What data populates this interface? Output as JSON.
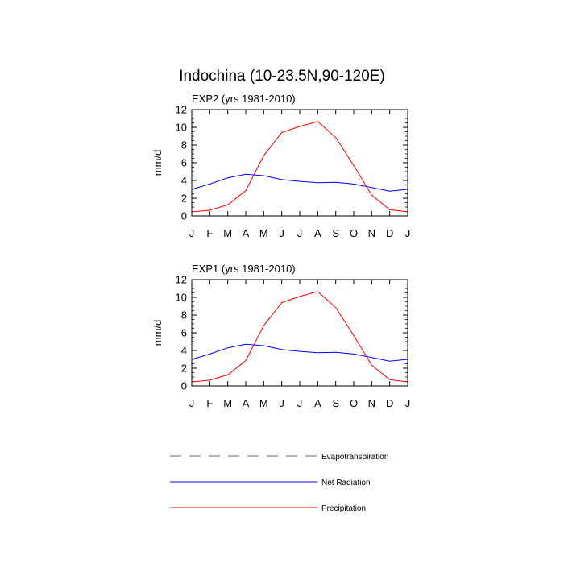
{
  "figure": {
    "title": "Indochina (10-23.5N,90-120E)"
  },
  "chart_data": [
    {
      "type": "line",
      "panel": "top",
      "title": "EXP2 (yrs 1981-2010)",
      "ylabel": "mm/d",
      "xlabel": "",
      "x_ticks": [
        "J",
        "F",
        "M",
        "A",
        "M",
        "J",
        "J",
        "A",
        "S",
        "O",
        "N",
        "D",
        "J"
      ],
      "ylim": [
        0,
        12
      ],
      "y_ticks": [
        0,
        2,
        4,
        6,
        8,
        10,
        12
      ],
      "grid": false,
      "series": [
        {
          "name": "Evapotranspiration",
          "color": "#888888",
          "dash": "dashed",
          "values": []
        },
        {
          "name": "Net Radiation",
          "color": "#0000ff",
          "values": [
            3.0,
            3.6,
            4.3,
            4.7,
            4.55,
            4.1,
            3.9,
            3.75,
            3.8,
            3.6,
            3.2,
            2.8,
            3.0
          ]
        },
        {
          "name": "Precipitation",
          "color": "#ff0000",
          "values": [
            0.45,
            0.65,
            1.25,
            2.85,
            6.8,
            9.4,
            10.1,
            10.65,
            8.85,
            5.7,
            2.35,
            0.7,
            0.45
          ]
        }
      ]
    },
    {
      "type": "line",
      "panel": "bottom",
      "title": "EXP1 (yrs 1981-2010)",
      "ylabel": "mm/d",
      "xlabel": "",
      "x_ticks": [
        "J",
        "F",
        "M",
        "A",
        "M",
        "J",
        "J",
        "A",
        "S",
        "O",
        "N",
        "D",
        "J"
      ],
      "ylim": [
        0,
        12
      ],
      "y_ticks": [
        0,
        2,
        4,
        6,
        8,
        10,
        12
      ],
      "grid": false,
      "series": [
        {
          "name": "Evapotranspiration",
          "color": "#888888",
          "dash": "dashed",
          "values": []
        },
        {
          "name": "Net Radiation",
          "color": "#0000ff",
          "values": [
            3.0,
            3.6,
            4.3,
            4.7,
            4.55,
            4.1,
            3.9,
            3.75,
            3.8,
            3.6,
            3.2,
            2.8,
            3.0
          ]
        },
        {
          "name": "Precipitation",
          "color": "#ff0000",
          "values": [
            0.45,
            0.65,
            1.25,
            2.85,
            6.8,
            9.4,
            10.1,
            10.65,
            8.85,
            5.7,
            2.35,
            0.7,
            0.45
          ]
        }
      ]
    }
  ],
  "legend": {
    "placement": "bottom",
    "items": [
      {
        "label": "Evapotranspiration",
        "color": "#888888",
        "dash": "dashed"
      },
      {
        "label": "Net Radiation",
        "color": "#0000ff",
        "dash": "solid"
      },
      {
        "label": "Precipitation",
        "color": "#ff0000",
        "dash": "solid"
      }
    ]
  }
}
